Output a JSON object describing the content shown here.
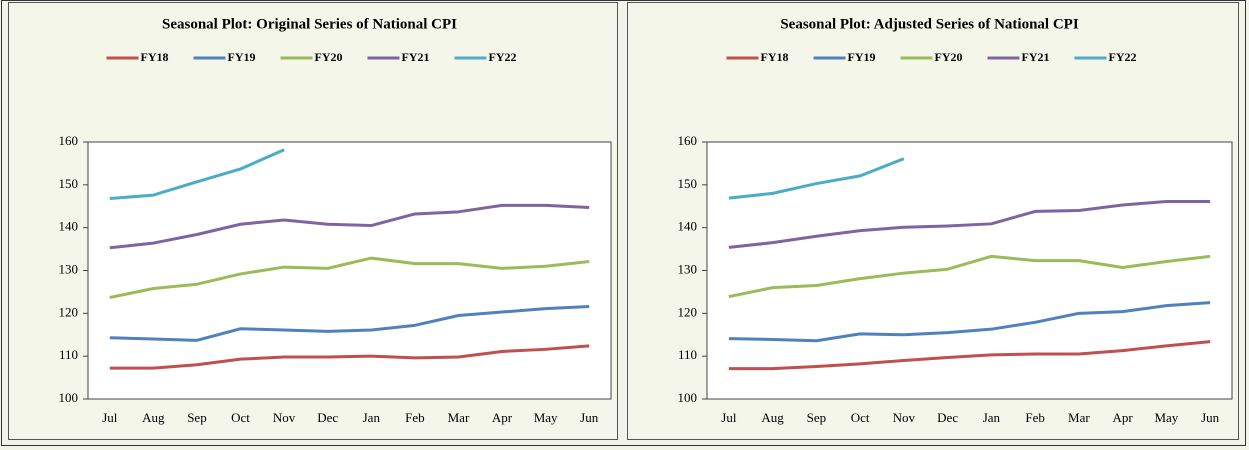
{
  "chart_data": [
    {
      "type": "line",
      "title": "Seasonal Plot: Original Series of National CPI",
      "categories": [
        "Jul",
        "Aug",
        "Sep",
        "Oct",
        "Nov",
        "Dec",
        "Jan",
        "Feb",
        "Mar",
        "Apr",
        "May",
        "Jun"
      ],
      "ylim": [
        100,
        160
      ],
      "yticks": [
        100,
        110,
        120,
        130,
        140,
        150,
        160
      ],
      "series": [
        {
          "name": "FY18",
          "color": "#c0504d",
          "values": [
            107.2,
            107.2,
            108,
            109.3,
            109.8,
            109.8,
            110,
            109.6,
            109.8,
            111.1,
            111.6,
            112.4
          ]
        },
        {
          "name": "FY19",
          "color": "#4f81bd",
          "values": [
            114.3,
            114,
            113.7,
            116.4,
            116.1,
            115.8,
            116.1,
            117.2,
            119.5,
            120.3,
            121.1,
            121.6
          ]
        },
        {
          "name": "FY20",
          "color": "#9bbb59",
          "values": [
            123.7,
            125.8,
            126.8,
            129.2,
            130.8,
            130.5,
            132.9,
            131.6,
            131.6,
            130.5,
            131,
            132.1
          ]
        },
        {
          "name": "FY21",
          "color": "#8064a2",
          "values": [
            135.3,
            136.4,
            138.4,
            140.8,
            141.8,
            140.8,
            140.5,
            143.2,
            143.7,
            145.2,
            145.2,
            144.7
          ]
        },
        {
          "name": "FY22",
          "color": "#4bacc6",
          "values": [
            146.8,
            147.6,
            150.7,
            153.7,
            158.2,
            null,
            null,
            null,
            null,
            null,
            null,
            null
          ]
        }
      ]
    },
    {
      "type": "line",
      "title": "Seasonal Plot: Adjusted Series of National CPI",
      "categories": [
        "Jul",
        "Aug",
        "Sep",
        "Oct",
        "Nov",
        "Dec",
        "Jan",
        "Feb",
        "Mar",
        "Apr",
        "May",
        "Jun"
      ],
      "ylim": [
        100,
        160
      ],
      "yticks": [
        100,
        110,
        120,
        130,
        140,
        150,
        160
      ],
      "series": [
        {
          "name": "FY18",
          "color": "#c0504d",
          "values": [
            107.1,
            107.1,
            107.6,
            108.2,
            109,
            109.7,
            110.3,
            110.5,
            110.5,
            111.3,
            112.4,
            113.4
          ]
        },
        {
          "name": "FY19",
          "color": "#4f81bd",
          "values": [
            114.1,
            113.9,
            113.6,
            115.2,
            115,
            115.5,
            116.3,
            117.9,
            120,
            120.4,
            121.8,
            122.5
          ]
        },
        {
          "name": "FY20",
          "color": "#9bbb59",
          "values": [
            123.9,
            126,
            126.5,
            128.1,
            129.4,
            130.3,
            133.3,
            132.3,
            132.3,
            130.7,
            132.1,
            133.3
          ]
        },
        {
          "name": "FY21",
          "color": "#8064a2",
          "values": [
            135.4,
            136.5,
            138,
            139.3,
            140.1,
            140.4,
            140.9,
            143.8,
            144,
            145.3,
            146.1,
            146.1
          ]
        },
        {
          "name": "FY22",
          "color": "#4bacc6",
          "values": [
            146.9,
            148,
            150.3,
            152.1,
            156.1,
            null,
            null,
            null,
            null,
            null,
            null,
            null
          ]
        }
      ]
    }
  ]
}
